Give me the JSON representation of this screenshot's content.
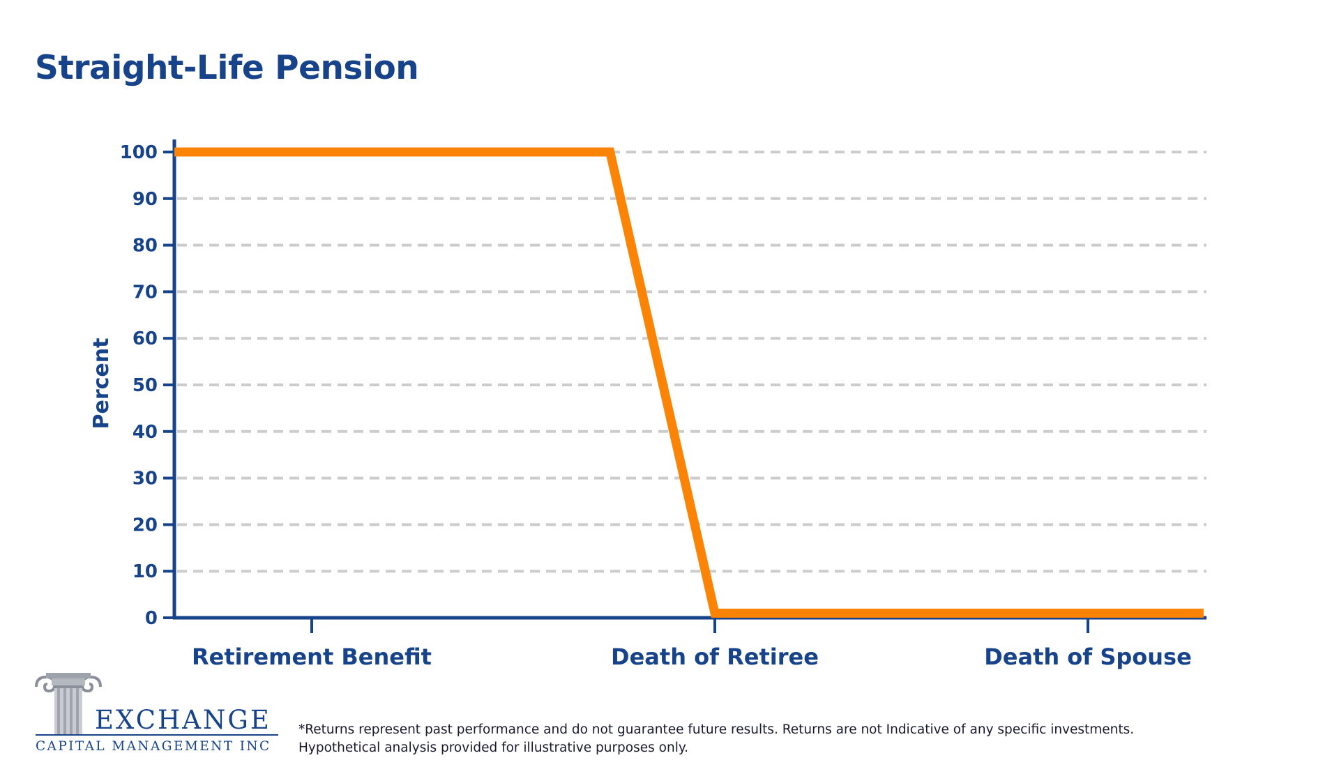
{
  "title": "Straight-Life Pension",
  "chart_data": {
    "type": "line",
    "ylabel": "Percent",
    "ylim": [
      0,
      100
    ],
    "yticks": [
      0,
      10,
      20,
      30,
      40,
      50,
      60,
      70,
      80,
      90,
      100
    ],
    "categories": [
      "Retirement Benefit",
      "Death of Retiree",
      "Death of Spouse"
    ],
    "series": [
      {
        "color": "#fb8407",
        "points": [
          {
            "x": -0.48,
            "y": 100
          },
          {
            "x": 0.74,
            "y": 100
          },
          {
            "x": 1.0,
            "y": 1
          },
          {
            "x": 2.31,
            "y": 1
          }
        ]
      }
    ],
    "grid": true,
    "colors": {
      "axis": "#17438b",
      "grid": "#cccccc",
      "line": "#fb8407"
    }
  },
  "logo": {
    "name": "EXCHANGE",
    "subtitle": "CAPITAL MANAGEMENT INC"
  },
  "disclaimer": {
    "line1": "*Returns represent past performance and do not guarantee future results. Returns are not Indicative of any specific investments.",
    "line2": "Hypothetical analysis provided for illustrative purposes only."
  }
}
